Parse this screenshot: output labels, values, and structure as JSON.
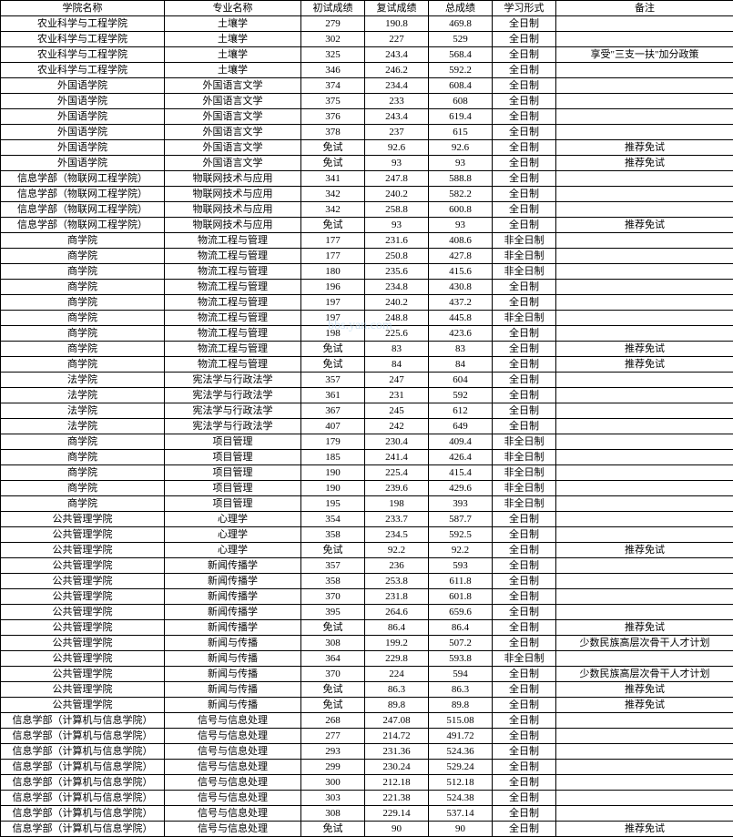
{
  "headers": {
    "college": "学院名称",
    "major": "专业名称",
    "score1": "初试成绩",
    "score2": "复试成绩",
    "total": "总成绩",
    "mode": "学习形式",
    "remark": "备注"
  },
  "watermark": "bbs.yan.com",
  "rows": [
    {
      "college": "农业科学与工程学院",
      "major": "土壤学",
      "s1": "279",
      "s2": "190.8",
      "total": "469.8",
      "mode": "全日制",
      "remark": ""
    },
    {
      "college": "农业科学与工程学院",
      "major": "土壤学",
      "s1": "302",
      "s2": "227",
      "total": "529",
      "mode": "全日制",
      "remark": ""
    },
    {
      "college": "农业科学与工程学院",
      "major": "土壤学",
      "s1": "325",
      "s2": "243.4",
      "total": "568.4",
      "mode": "全日制",
      "remark": "享受\"三支一扶\"加分政策"
    },
    {
      "college": "农业科学与工程学院",
      "major": "土壤学",
      "s1": "346",
      "s2": "246.2",
      "total": "592.2",
      "mode": "全日制",
      "remark": ""
    },
    {
      "college": "外国语学院",
      "major": "外国语言文学",
      "s1": "374",
      "s2": "234.4",
      "total": "608.4",
      "mode": "全日制",
      "remark": ""
    },
    {
      "college": "外国语学院",
      "major": "外国语言文学",
      "s1": "375",
      "s2": "233",
      "total": "608",
      "mode": "全日制",
      "remark": ""
    },
    {
      "college": "外国语学院",
      "major": "外国语言文学",
      "s1": "376",
      "s2": "243.4",
      "total": "619.4",
      "mode": "全日制",
      "remark": ""
    },
    {
      "college": "外国语学院",
      "major": "外国语言文学",
      "s1": "378",
      "s2": "237",
      "total": "615",
      "mode": "全日制",
      "remark": ""
    },
    {
      "college": "外国语学院",
      "major": "外国语言文学",
      "s1": "免试",
      "s2": "92.6",
      "total": "92.6",
      "mode": "全日制",
      "remark": "推荐免试"
    },
    {
      "college": "外国语学院",
      "major": "外国语言文学",
      "s1": "免试",
      "s2": "93",
      "total": "93",
      "mode": "全日制",
      "remark": "推荐免试"
    },
    {
      "college": "信息学部（物联网工程学院）",
      "major": "物联网技术与应用",
      "s1": "341",
      "s2": "247.8",
      "total": "588.8",
      "mode": "全日制",
      "remark": ""
    },
    {
      "college": "信息学部（物联网工程学院）",
      "major": "物联网技术与应用",
      "s1": "342",
      "s2": "240.2",
      "total": "582.2",
      "mode": "全日制",
      "remark": ""
    },
    {
      "college": "信息学部（物联网工程学院）",
      "major": "物联网技术与应用",
      "s1": "342",
      "s2": "258.8",
      "total": "600.8",
      "mode": "全日制",
      "remark": ""
    },
    {
      "college": "信息学部（物联网工程学院）",
      "major": "物联网技术与应用",
      "s1": "免试",
      "s2": "93",
      "total": "93",
      "mode": "全日制",
      "remark": "推荐免试"
    },
    {
      "college": "商学院",
      "major": "物流工程与管理",
      "s1": "177",
      "s2": "231.6",
      "total": "408.6",
      "mode": "非全日制",
      "remark": ""
    },
    {
      "college": "商学院",
      "major": "物流工程与管理",
      "s1": "177",
      "s2": "250.8",
      "total": "427.8",
      "mode": "非全日制",
      "remark": ""
    },
    {
      "college": "商学院",
      "major": "物流工程与管理",
      "s1": "180",
      "s2": "235.6",
      "total": "415.6",
      "mode": "非全日制",
      "remark": ""
    },
    {
      "college": "商学院",
      "major": "物流工程与管理",
      "s1": "196",
      "s2": "234.8",
      "total": "430.8",
      "mode": "全日制",
      "remark": ""
    },
    {
      "college": "商学院",
      "major": "物流工程与管理",
      "s1": "197",
      "s2": "240.2",
      "total": "437.2",
      "mode": "全日制",
      "remark": ""
    },
    {
      "college": "商学院",
      "major": "物流工程与管理",
      "s1": "197",
      "s2": "248.8",
      "total": "445.8",
      "mode": "非全日制",
      "remark": ""
    },
    {
      "college": "商学院",
      "major": "物流工程与管理",
      "s1": "198",
      "s2": "225.6",
      "total": "423.6",
      "mode": "全日制",
      "remark": ""
    },
    {
      "college": "商学院",
      "major": "物流工程与管理",
      "s1": "免试",
      "s2": "83",
      "total": "83",
      "mode": "全日制",
      "remark": "推荐免试"
    },
    {
      "college": "商学院",
      "major": "物流工程与管理",
      "s1": "免试",
      "s2": "84",
      "total": "84",
      "mode": "全日制",
      "remark": "推荐免试"
    },
    {
      "college": "法学院",
      "major": "宪法学与行政法学",
      "s1": "357",
      "s2": "247",
      "total": "604",
      "mode": "全日制",
      "remark": ""
    },
    {
      "college": "法学院",
      "major": "宪法学与行政法学",
      "s1": "361",
      "s2": "231",
      "total": "592",
      "mode": "全日制",
      "remark": ""
    },
    {
      "college": "法学院",
      "major": "宪法学与行政法学",
      "s1": "367",
      "s2": "245",
      "total": "612",
      "mode": "全日制",
      "remark": ""
    },
    {
      "college": "法学院",
      "major": "宪法学与行政法学",
      "s1": "407",
      "s2": "242",
      "total": "649",
      "mode": "全日制",
      "remark": ""
    },
    {
      "college": "商学院",
      "major": "项目管理",
      "s1": "179",
      "s2": "230.4",
      "total": "409.4",
      "mode": "非全日制",
      "remark": ""
    },
    {
      "college": "商学院",
      "major": "项目管理",
      "s1": "185",
      "s2": "241.4",
      "total": "426.4",
      "mode": "非全日制",
      "remark": ""
    },
    {
      "college": "商学院",
      "major": "项目管理",
      "s1": "190",
      "s2": "225.4",
      "total": "415.4",
      "mode": "非全日制",
      "remark": ""
    },
    {
      "college": "商学院",
      "major": "项目管理",
      "s1": "190",
      "s2": "239.6",
      "total": "429.6",
      "mode": "非全日制",
      "remark": ""
    },
    {
      "college": "商学院",
      "major": "项目管理",
      "s1": "195",
      "s2": "198",
      "total": "393",
      "mode": "非全日制",
      "remark": ""
    },
    {
      "college": "公共管理学院",
      "major": "心理学",
      "s1": "354",
      "s2": "233.7",
      "total": "587.7",
      "mode": "全日制",
      "remark": ""
    },
    {
      "college": "公共管理学院",
      "major": "心理学",
      "s1": "358",
      "s2": "234.5",
      "total": "592.5",
      "mode": "全日制",
      "remark": ""
    },
    {
      "college": "公共管理学院",
      "major": "心理学",
      "s1": "免试",
      "s2": "92.2",
      "total": "92.2",
      "mode": "全日制",
      "remark": "推荐免试"
    },
    {
      "college": "公共管理学院",
      "major": "新闻传播学",
      "s1": "357",
      "s2": "236",
      "total": "593",
      "mode": "全日制",
      "remark": ""
    },
    {
      "college": "公共管理学院",
      "major": "新闻传播学",
      "s1": "358",
      "s2": "253.8",
      "total": "611.8",
      "mode": "全日制",
      "remark": ""
    },
    {
      "college": "公共管理学院",
      "major": "新闻传播学",
      "s1": "370",
      "s2": "231.8",
      "total": "601.8",
      "mode": "全日制",
      "remark": ""
    },
    {
      "college": "公共管理学院",
      "major": "新闻传播学",
      "s1": "395",
      "s2": "264.6",
      "total": "659.6",
      "mode": "全日制",
      "remark": ""
    },
    {
      "college": "公共管理学院",
      "major": "新闻传播学",
      "s1": "免试",
      "s2": "86.4",
      "total": "86.4",
      "mode": "全日制",
      "remark": "推荐免试"
    },
    {
      "college": "公共管理学院",
      "major": "新闻与传播",
      "s1": "308",
      "s2": "199.2",
      "total": "507.2",
      "mode": "全日制",
      "remark": "少数民族高层次骨干人才计划"
    },
    {
      "college": "公共管理学院",
      "major": "新闻与传播",
      "s1": "364",
      "s2": "229.8",
      "total": "593.8",
      "mode": "非全日制",
      "remark": ""
    },
    {
      "college": "公共管理学院",
      "major": "新闻与传播",
      "s1": "370",
      "s2": "224",
      "total": "594",
      "mode": "全日制",
      "remark": "少数民族高层次骨干人才计划"
    },
    {
      "college": "公共管理学院",
      "major": "新闻与传播",
      "s1": "免试",
      "s2": "86.3",
      "total": "86.3",
      "mode": "全日制",
      "remark": "推荐免试"
    },
    {
      "college": "公共管理学院",
      "major": "新闻与传播",
      "s1": "免试",
      "s2": "89.8",
      "total": "89.8",
      "mode": "全日制",
      "remark": "推荐免试"
    },
    {
      "college": "信息学部（计算机与信息学院）",
      "major": "信号与信息处理",
      "s1": "268",
      "s2": "247.08",
      "total": "515.08",
      "mode": "全日制",
      "remark": ""
    },
    {
      "college": "信息学部（计算机与信息学院）",
      "major": "信号与信息处理",
      "s1": "277",
      "s2": "214.72",
      "total": "491.72",
      "mode": "全日制",
      "remark": ""
    },
    {
      "college": "信息学部（计算机与信息学院）",
      "major": "信号与信息处理",
      "s1": "293",
      "s2": "231.36",
      "total": "524.36",
      "mode": "全日制",
      "remark": ""
    },
    {
      "college": "信息学部（计算机与信息学院）",
      "major": "信号与信息处理",
      "s1": "299",
      "s2": "230.24",
      "total": "529.24",
      "mode": "全日制",
      "remark": ""
    },
    {
      "college": "信息学部（计算机与信息学院）",
      "major": "信号与信息处理",
      "s1": "300",
      "s2": "212.18",
      "total": "512.18",
      "mode": "全日制",
      "remark": ""
    },
    {
      "college": "信息学部（计算机与信息学院）",
      "major": "信号与信息处理",
      "s1": "303",
      "s2": "221.38",
      "total": "524.38",
      "mode": "全日制",
      "remark": ""
    },
    {
      "college": "信息学部（计算机与信息学院）",
      "major": "信号与信息处理",
      "s1": "308",
      "s2": "229.14",
      "total": "537.14",
      "mode": "全日制",
      "remark": ""
    },
    {
      "college": "信息学部（计算机与信息学院）",
      "major": "信号与信息处理",
      "s1": "免试",
      "s2": "90",
      "total": "90",
      "mode": "全日制",
      "remark": "推荐免试"
    }
  ]
}
